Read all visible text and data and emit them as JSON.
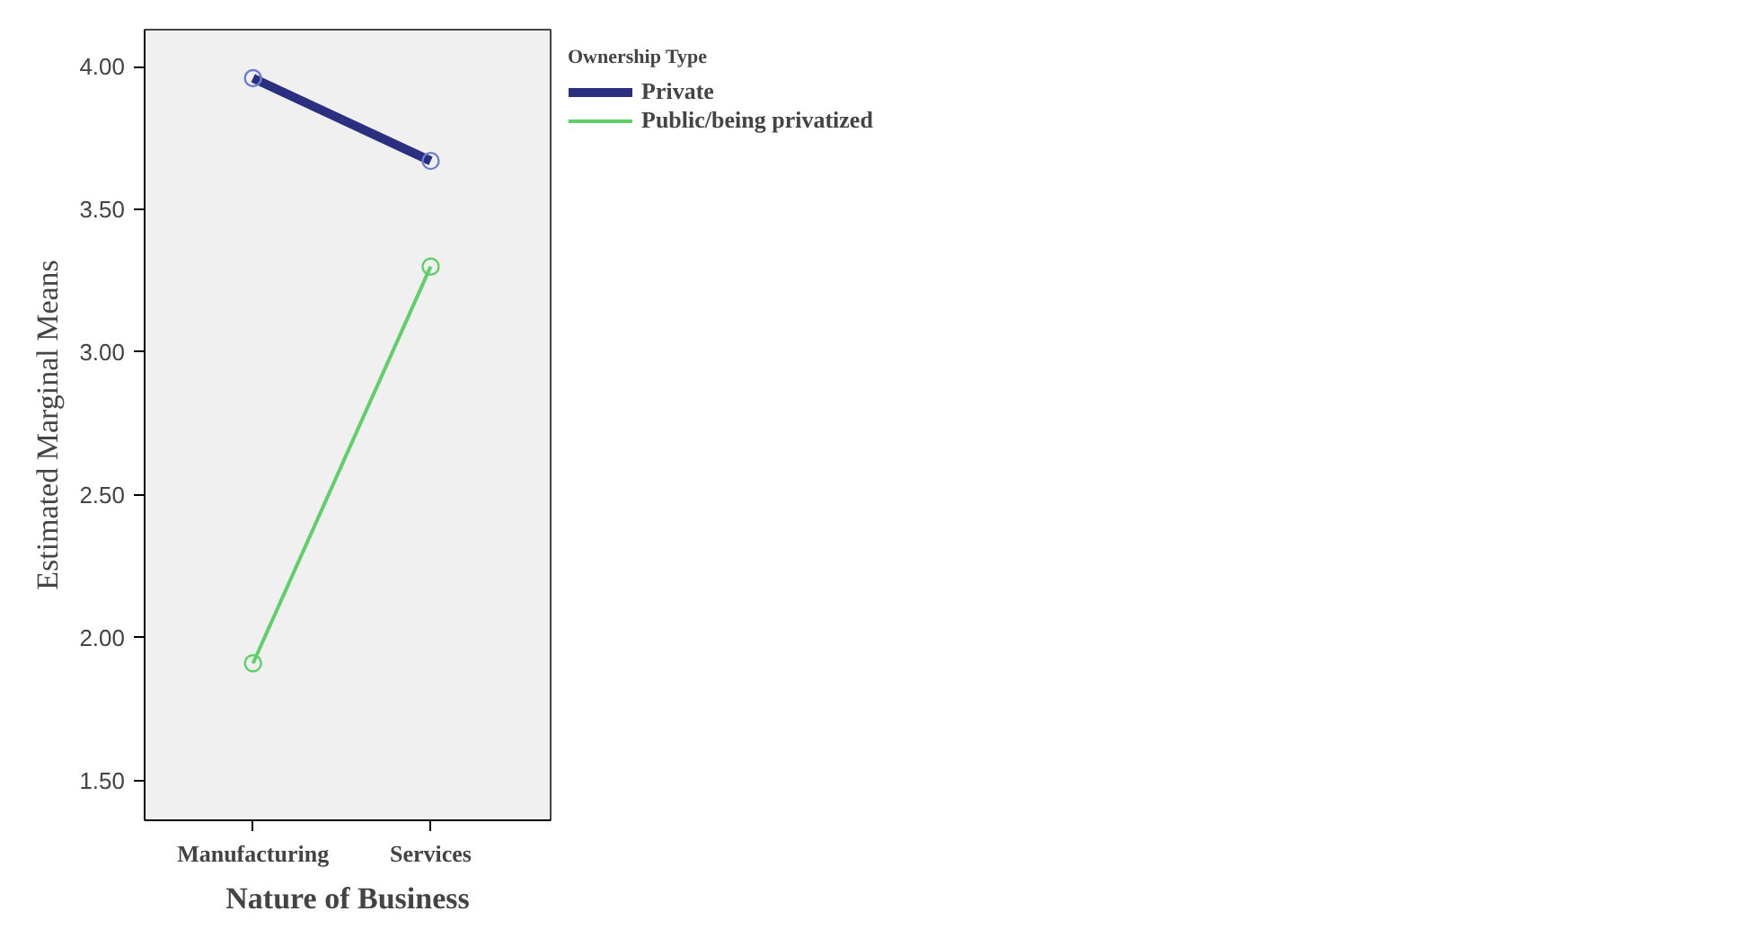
{
  "chart_data": {
    "type": "line",
    "xlabel": "Nature of Business",
    "ylabel": "Estimated Marginal Means",
    "legend_title": "Ownership Type",
    "categories": [
      "Manufacturing",
      "Services"
    ],
    "series": [
      {
        "name": "Private",
        "color": "#2b2f80",
        "values": [
          3.96,
          3.67
        ]
      },
      {
        "name": "Public/being privatized",
        "color": "#5fcf68",
        "values": [
          1.91,
          3.3
        ]
      }
    ],
    "ylim": [
      1.36,
      4.13
    ],
    "yticks": [
      {
        "value": 1.5,
        "label": "1.50"
      },
      {
        "value": 2.0,
        "label": "2.00"
      },
      {
        "value": 2.5,
        "label": "2.50"
      },
      {
        "value": 3.0,
        "label": "3.00"
      },
      {
        "value": 3.5,
        "label": "3.50"
      },
      {
        "value": 4.0,
        "label": "4.00"
      }
    ],
    "grid": false,
    "legend": "top right",
    "marker": "circle",
    "line_style": "solid"
  }
}
